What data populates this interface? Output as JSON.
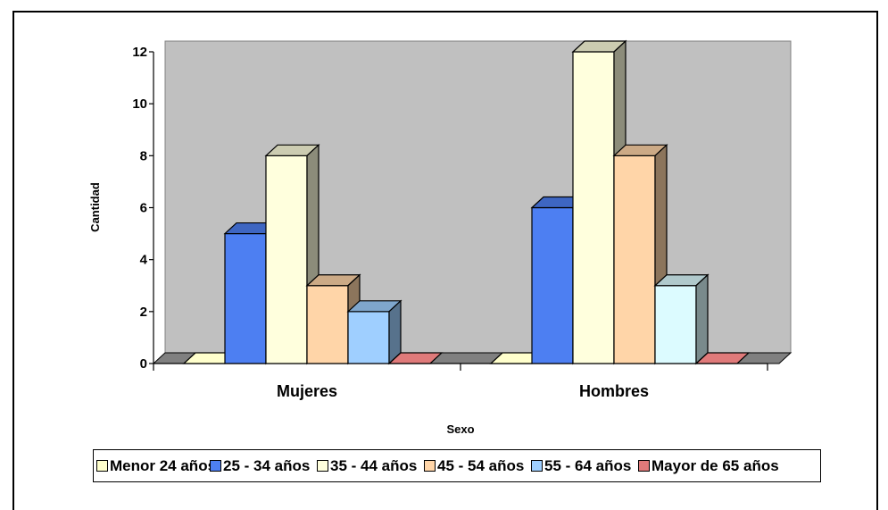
{
  "chart_data": {
    "type": "bar",
    "variant": "3d-clustered-column",
    "categories": [
      "Mujeres",
      "Hombres"
    ],
    "series": [
      {
        "name": "Menor 24 años",
        "values": [
          0,
          0
        ],
        "color": "#ffffcc"
      },
      {
        "name": "25 - 34 años",
        "values": [
          5,
          6
        ],
        "color": "#4d7ff2"
      },
      {
        "name": "35 - 44 años",
        "values": [
          8,
          12
        ],
        "color": "#ffffdd"
      },
      {
        "name": "45 - 54 años",
        "values": [
          3,
          8
        ],
        "color": "#ffd5a8"
      },
      {
        "name": "55 - 64 años",
        "values": [
          2,
          3
        ],
        "color": "#9fcfff"
      },
      {
        "name": "Mayor de 65 años",
        "values": [
          0,
          0
        ],
        "color": "#e07a7a"
      }
    ],
    "hombres_55_64_color": "#dcfbff",
    "xlabel": "Sexo",
    "ylabel": "Cantidad",
    "ylim": [
      0,
      12
    ],
    "yticks": [
      0,
      2,
      4,
      6,
      8,
      10,
      12
    ],
    "plot_background": "#c0c0c0",
    "grid": false,
    "legend_position": "bottom"
  }
}
